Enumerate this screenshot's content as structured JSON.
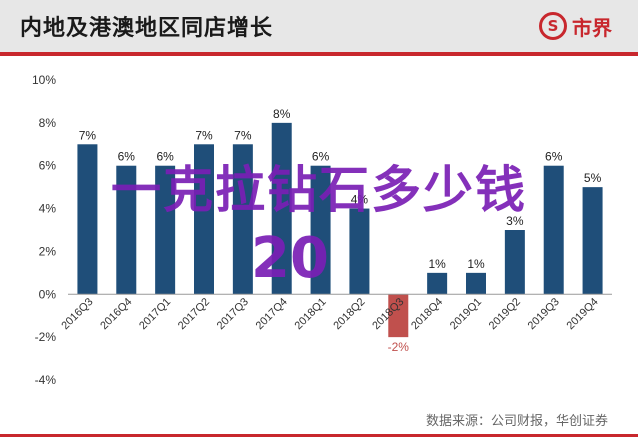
{
  "header": {
    "title": "内地及港澳地区同店增长",
    "logo_mark": "S",
    "logo_text": "市界"
  },
  "source": "数据来源：公司财报，华创证券",
  "overlay": {
    "line1": "一克拉钻石多少钱",
    "line2": "20"
  },
  "colors": {
    "bar": "#1f4e79",
    "negative_bar": "#c0504d",
    "negative_label": "#c0504d",
    "accent": "#c8272d"
  },
  "chart_data": {
    "type": "bar",
    "categories": [
      "2016Q3",
      "2016Q4",
      "2017Q1",
      "2017Q2",
      "2017Q3",
      "2017Q4",
      "2018Q1",
      "2018Q2",
      "2018Q3",
      "2018Q4",
      "2019Q1",
      "2019Q2",
      "2019Q3",
      "2019Q4"
    ],
    "values": [
      7,
      6,
      6,
      7,
      7,
      8,
      6,
      4,
      -2,
      1,
      1,
      3,
      6,
      5
    ],
    "labels": [
      "7%",
      "6%",
      "6%",
      "7%",
      "7%",
      "8%",
      "6%",
      "4%",
      "-2%",
      "1%",
      "1%",
      "3%",
      "6%",
      "5%"
    ],
    "ylim": [
      -4,
      10
    ],
    "yticks": [
      -4,
      -2,
      0,
      2,
      4,
      6,
      8,
      10
    ],
    "ytick_labels": [
      "-4%",
      "-2%",
      "0%",
      "2%",
      "4%",
      "6%",
      "8%",
      "10%"
    ],
    "title": "内地及港澳地区同店增长",
    "xlabel": "",
    "ylabel": "",
    "grid": false
  }
}
